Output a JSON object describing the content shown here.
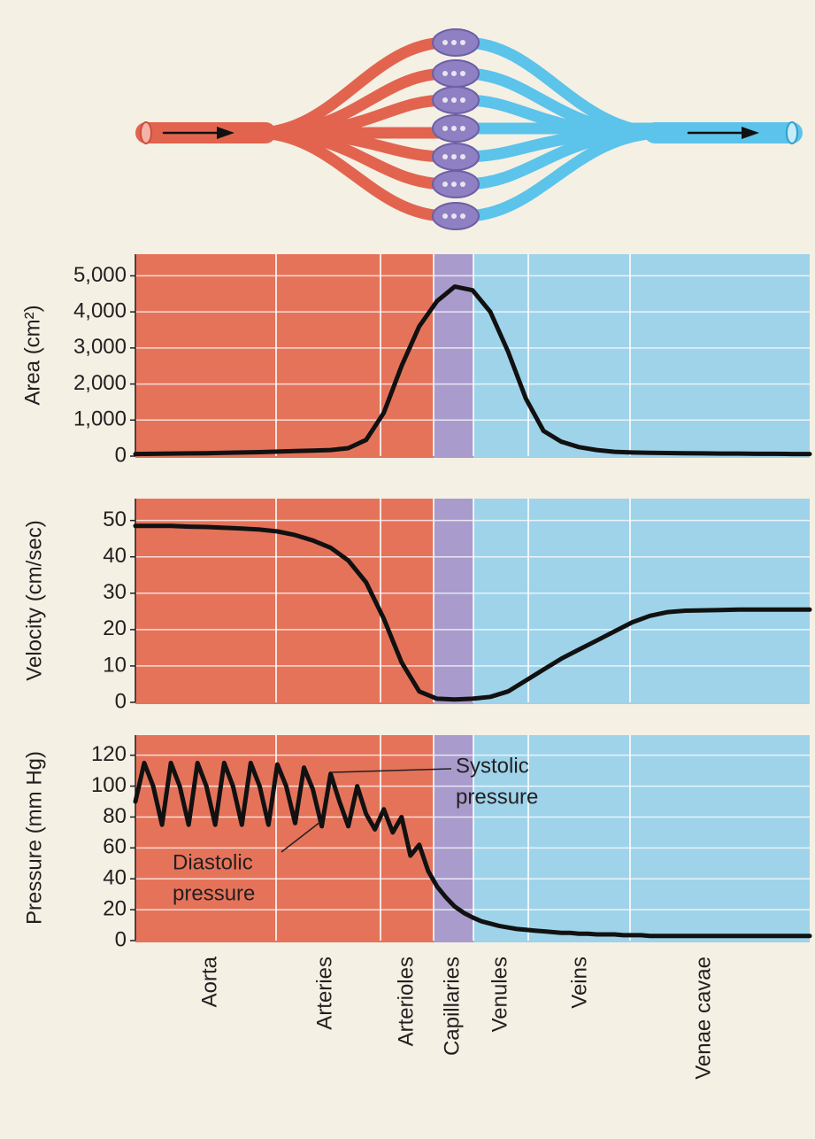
{
  "regions": {
    "labels": [
      "Aorta",
      "Arteries",
      "Arterioles",
      "Capillaries",
      "Venules",
      "Veins",
      "Venae cavae"
    ],
    "colors": [
      "#e5735a",
      "#e5735a",
      "#e5735a",
      "#a99ccc",
      "#9fd3ea",
      "#9fd3ea",
      "#9fd3ea"
    ]
  },
  "chart_data": [
    {
      "type": "line",
      "y_label": "Area (cm²)",
      "color": "#111111",
      "ylim": [
        0,
        5600
      ],
      "yticks": [
        0,
        {
          "value": 1000,
          "label": "1,000"
        },
        {
          "value": 2000,
          "label": "2,000"
        },
        {
          "value": 3000,
          "label": "3,000"
        },
        {
          "value": 4000,
          "label": "4,000"
        },
        {
          "value": 5000,
          "label": "5,000"
        }
      ],
      "values": [
        60,
        65,
        70,
        75,
        80,
        90,
        100,
        110,
        125,
        140,
        155,
        170,
        220,
        450,
        1200,
        2500,
        3600,
        4300,
        4700,
        4600,
        4000,
        2900,
        1600,
        700,
        400,
        250,
        170,
        120,
        100,
        90,
        85,
        80,
        75,
        70,
        70,
        65,
        65,
        60,
        60
      ]
    },
    {
      "type": "line",
      "y_label": "Velocity (cm/sec)",
      "color": "#111111",
      "ylim": [
        0,
        56
      ],
      "yticks": [
        0,
        10,
        20,
        30,
        40,
        50
      ],
      "values": [
        48.5,
        48.5,
        48.5,
        48.3,
        48.2,
        48,
        47.8,
        47.5,
        47,
        46,
        44.5,
        42.5,
        39,
        33,
        23,
        11,
        3,
        1,
        0.8,
        1,
        1.5,
        3,
        6,
        9,
        12,
        14.5,
        17,
        19.5,
        22,
        23.8,
        24.8,
        25.2,
        25.3,
        25.4,
        25.5,
        25.5,
        25.5,
        25.5,
        25.5
      ]
    },
    {
      "type": "line",
      "y_label": "Pressure (mm Hg)",
      "color": "#111111",
      "ylim": [
        0,
        133
      ],
      "yticks": [
        0,
        20,
        40,
        60,
        80,
        100,
        120
      ],
      "annotations": [
        {
          "lines": [
            "Systolic",
            "pressure"
          ]
        },
        {
          "lines": [
            "Diastolic",
            "pressure"
          ]
        }
      ],
      "values": [
        90,
        115,
        100,
        75,
        115,
        100,
        75,
        115,
        100,
        75,
        115,
        100,
        75,
        115,
        100,
        75,
        114,
        100,
        76,
        112,
        98,
        74,
        108,
        90,
        74,
        100,
        82,
        72,
        85,
        70,
        80,
        55,
        62,
        45,
        35,
        28,
        22,
        18,
        15,
        12.5,
        11,
        9.5,
        8.5,
        7.5,
        7,
        6.5,
        6,
        5.5,
        5,
        5,
        4.5,
        4.5,
        4,
        4,
        4,
        3.5,
        3.5,
        3.5,
        3,
        3,
        3,
        3,
        3,
        3,
        3,
        3,
        3,
        3,
        3,
        3,
        3,
        3,
        3,
        3,
        3,
        3,
        3
      ]
    }
  ]
}
